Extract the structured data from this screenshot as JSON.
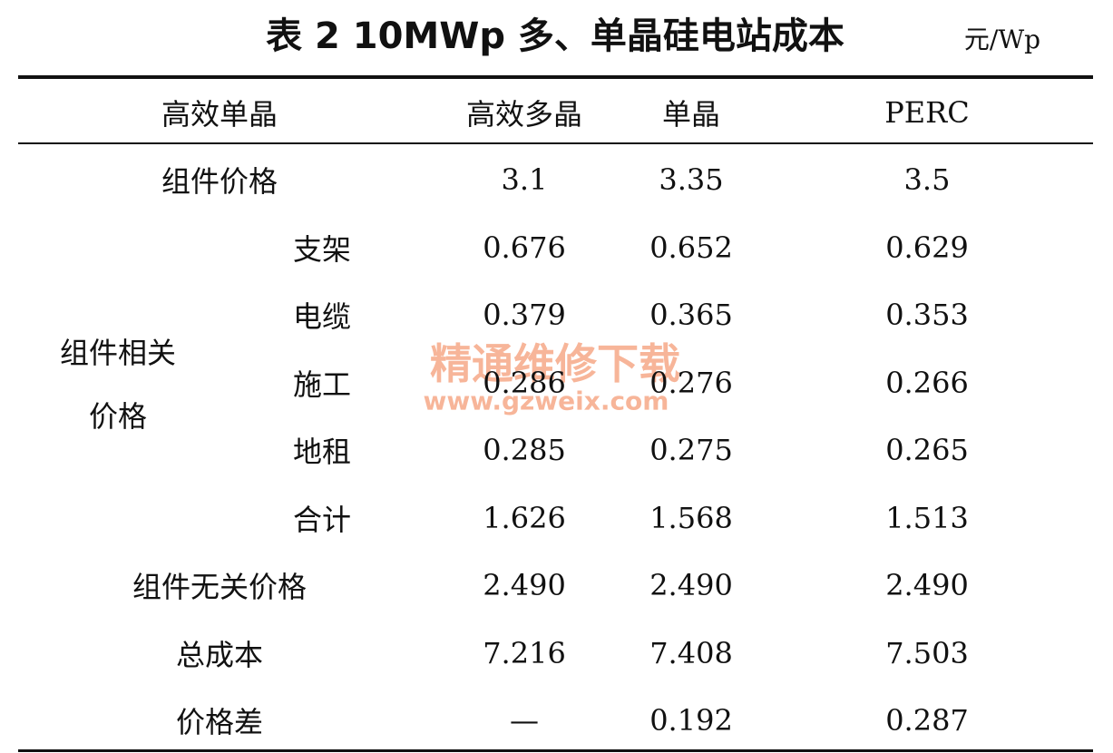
{
  "title": "表 2 10MWp 多、单晶硅电站成本",
  "unit": "元/Wp",
  "header": [
    "高效单晶",
    "高效多晶",
    "单晶",
    "PERC"
  ],
  "sections": [
    {
      "label": "组件价格",
      "values": [
        "3.1",
        "3.35",
        "3.5"
      ]
    },
    {
      "label_lines": [
        "组件相关",
        "价格"
      ],
      "items": [
        {
          "label": "支架",
          "values": [
            "0.676",
            "0.652",
            "0.629"
          ]
        },
        {
          "label": "电缆",
          "values": [
            "0.379",
            "0.365",
            "0.353"
          ]
        },
        {
          "label": "施工",
          "values": [
            "0.286",
            "0.276",
            "0.266"
          ]
        },
        {
          "label": "地租",
          "values": [
            "0.285",
            "0.275",
            "0.265"
          ]
        },
        {
          "label": "合计",
          "values": [
            "1.626",
            "1.568",
            "1.513"
          ]
        }
      ]
    },
    {
      "label": "组件无关价格",
      "values": [
        "2.490",
        "2.490",
        "2.490"
      ]
    },
    {
      "label": "总成本",
      "values": [
        "7.216",
        "7.408",
        "7.503"
      ]
    },
    {
      "label": "价格差",
      "values": [
        "—",
        "0.192",
        "0.287"
      ]
    }
  ],
  "watermark": {
    "text": "精通维修下载",
    "url": "www.gzweix.com"
  }
}
